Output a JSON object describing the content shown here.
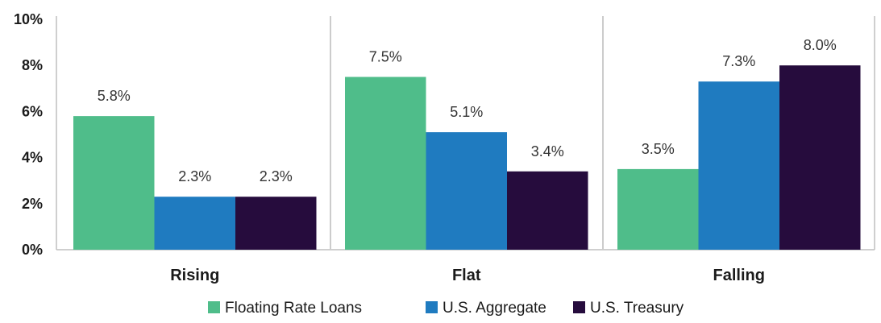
{
  "chart_data": {
    "type": "bar",
    "categories": [
      "Rising",
      "Flat",
      "Falling"
    ],
    "series": [
      {
        "name": "Floating Rate Loans",
        "values": [
          5.8,
          7.5,
          3.5
        ],
        "labels": [
          "5.8%",
          "7.5%",
          "3.5%"
        ],
        "color": "#4fbd8a"
      },
      {
        "name": "U.S. Aggregate",
        "values": [
          2.3,
          5.1,
          7.3
        ],
        "labels": [
          "2.3%",
          "5.1%",
          "7.3%"
        ],
        "color": "#1f7bc0"
      },
      {
        "name": "U.S. Treasury",
        "values": [
          2.3,
          3.4,
          8.0
        ],
        "labels": [
          "2.3%",
          "3.4%",
          "8.0%"
        ],
        "color": "#260c3d"
      }
    ],
    "ylim": [
      0,
      10
    ],
    "yticks": [
      "0%",
      "2%",
      "4%",
      "6%",
      "8%",
      "10%"
    ],
    "ytick_values": [
      0,
      2,
      4,
      6,
      8,
      10
    ],
    "legend_position": "bottom",
    "grid": false
  }
}
